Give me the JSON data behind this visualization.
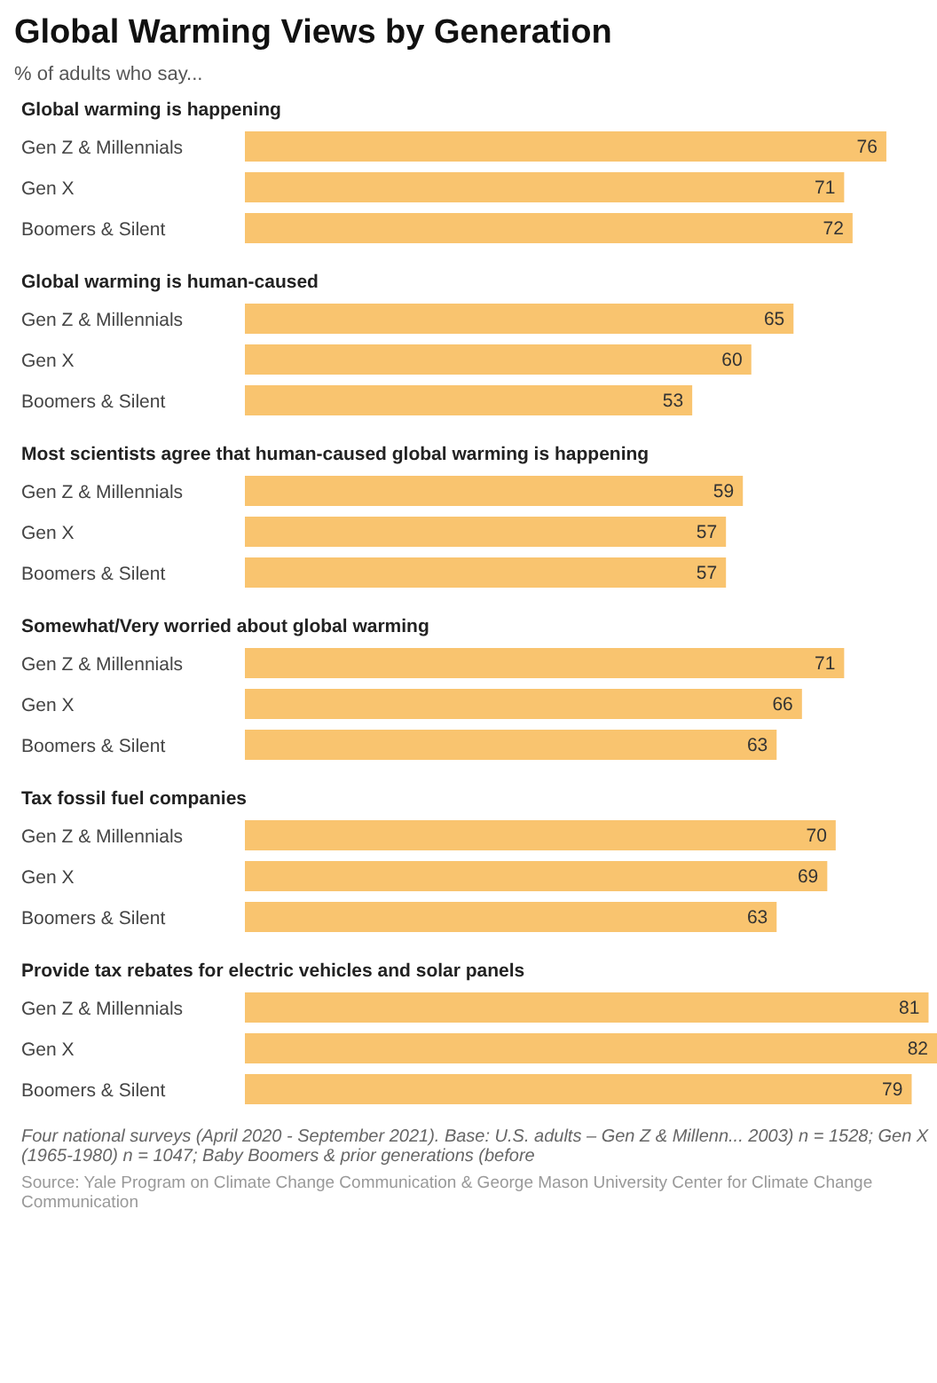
{
  "chart_data": [
    {
      "type": "other",
      "title": "Global Warming Views by Generation",
      "subtitle": "% of adults who say..."
    },
    {
      "type": "bar",
      "orientation": "horizontal",
      "title": "Global warming is happening",
      "categories": [
        "Gen Z & Millennials",
        "Gen X",
        "Boomers & Silent"
      ],
      "values": [
        76,
        71,
        72
      ],
      "color": "#f9c46f",
      "tick_labels": "y",
      "data_labels": true
    },
    {
      "type": "bar",
      "orientation": "horizontal",
      "title": "Global warming is human-caused",
      "categories": [
        "Gen Z & Millennials",
        "Gen X",
        "Boomers & Silent"
      ],
      "values": [
        65,
        60,
        53
      ],
      "color": "#f9c46f",
      "tick_labels": "y",
      "data_labels": true
    },
    {
      "type": "bar",
      "orientation": "horizontal",
      "title": "Most scientists agree that human-caused global warming is happening",
      "categories": [
        "Gen Z & Millennials",
        "Gen X",
        "Boomers & Silent"
      ],
      "values": [
        59,
        57,
        57
      ],
      "color": "#f9c46f",
      "tick_labels": "y",
      "data_labels": true
    },
    {
      "type": "bar",
      "orientation": "horizontal",
      "title": "Somewhat/Very worried about global warming",
      "categories": [
        "Gen Z & Millennials",
        "Gen X",
        "Boomers & Silent"
      ],
      "values": [
        71,
        66,
        63
      ],
      "color": "#f9c46f",
      "tick_labels": "y",
      "data_labels": true
    },
    {
      "type": "bar",
      "orientation": "horizontal",
      "title": "Tax fossil fuel companies",
      "categories": [
        "Gen Z & Millennials",
        "Gen X",
        "Boomers & Silent"
      ],
      "values": [
        70,
        69,
        63
      ],
      "color": "#f9c46f",
      "tick_labels": "y",
      "data_labels": true
    },
    {
      "type": "bar",
      "orientation": "horizontal",
      "title": "Provide tax rebates for electric vehicles and solar panels",
      "categories": [
        "Gen Z & Millennials",
        "Gen X",
        "Boomers & Silent"
      ],
      "values": [
        81,
        82,
        79
      ],
      "color": "#f9c46f",
      "tick_labels": "y",
      "data_labels": true,
      "annotations": [
        "Four national surveys (April 2020 - September 2021). Base: U.S. adults – Gen Z & Millenn... 2003) n = 1528; Gen X (1965-1980) n = 1047; Baby Boomers & prior generations (before",
        "Source: Yale Program on Climate Change Communication & George Mason University Center for Climate Change Communication"
      ]
    }
  ]
}
